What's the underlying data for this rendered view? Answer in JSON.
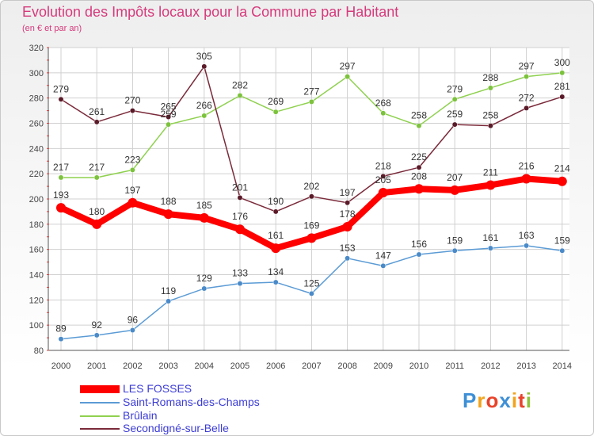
{
  "chart_data": {
    "type": "line",
    "title": "Evolution des Impôts locaux pour la Commune par Habitant",
    "subtitle": "(en € et par an)",
    "x": [
      "2000",
      "2001",
      "2002",
      "2003",
      "2004",
      "2005",
      "2006",
      "2007",
      "2008",
      "2009",
      "2010",
      "2011",
      "2012",
      "2013",
      "2014"
    ],
    "ylim": [
      80,
      320
    ],
    "yticks": [
      80,
      100,
      120,
      140,
      160,
      180,
      200,
      220,
      240,
      260,
      280,
      300,
      320
    ],
    "grid": true,
    "legend_position": "bottom-left",
    "series": [
      {
        "name": "LES FOSSES",
        "color": "#ff0000",
        "values": [
          193,
          180,
          197,
          188,
          185,
          176,
          161,
          169,
          178,
          205,
          208,
          207,
          211,
          216,
          214
        ]
      },
      {
        "name": "Saint-Romans-des-Champs",
        "color": "#5b9bd5",
        "values": [
          89,
          92,
          96,
          119,
          129,
          133,
          134,
          125,
          153,
          147,
          156,
          159,
          161,
          163,
          159
        ]
      },
      {
        "name": "Brûlain",
        "color": "#8fd14f",
        "values": [
          217,
          217,
          223,
          259,
          266,
          282,
          269,
          277,
          297,
          268,
          258,
          279,
          288,
          297,
          300
        ]
      },
      {
        "name": "Secondigné-sur-Belle",
        "color": "#7a2a3a",
        "values": [
          279,
          261,
          270,
          265,
          305,
          201,
          190,
          202,
          197,
          218,
          225,
          259,
          258,
          272,
          281
        ]
      }
    ],
    "point_labels": [
      [
        193,
        180,
        197,
        188,
        185,
        176,
        161,
        169,
        178,
        205,
        208,
        207,
        211,
        216,
        214
      ],
      [
        89,
        92,
        96,
        119,
        129,
        133,
        134,
        125,
        153,
        147,
        156,
        159,
        161,
        163,
        159
      ],
      [
        217,
        217,
        223,
        259,
        266,
        282,
        269,
        277,
        297,
        268,
        258,
        279,
        288,
        297,
        300
      ],
      [
        279,
        261,
        270,
        265,
        305,
        201,
        190,
        202,
        197,
        218,
        225,
        259,
        258,
        272,
        281
      ]
    ]
  },
  "legend": [
    {
      "label": "LES FOSSES"
    },
    {
      "label": "Saint-Romans-des-Champs"
    },
    {
      "label": "Brûlain"
    },
    {
      "label": "Secondigné-sur-Belle"
    }
  ],
  "logo": {
    "text": "Proxiti",
    "colors": [
      "#3d8fd6",
      "#f2a31b",
      "#e8432a",
      "#3d8fd6",
      "#f2a31b",
      "#e8432a",
      "#8fc33a"
    ]
  }
}
